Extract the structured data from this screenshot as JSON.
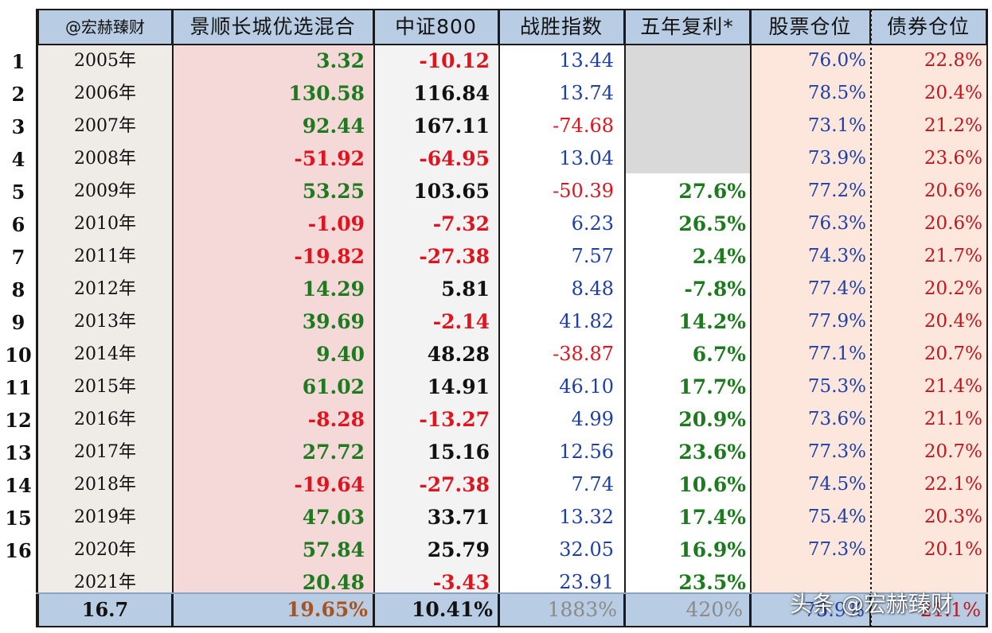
{
  "headers": [
    "@宏赫臻财",
    "景顺长城优选混合",
    "中证800",
    "战胜指数",
    "五年复利*",
    "股票仓位",
    "债券仓位"
  ],
  "colors": {
    "green": "#1e7a1e",
    "red": "#e0141e",
    "black": "#111111",
    "blue": "#1f3fa8",
    "dark_red": "#c0161e",
    "gray_text": "#8a8a8a",
    "brown": "#a8541e",
    "header_bg": "#b8cde4",
    "col_year_bg": "#efebe6",
    "col_fund_bg": "#f5d9d9",
    "col_index_bg": "#f3f3f3",
    "col_stock_bg": "#fde6dc",
    "col_bond_bg": "#fde6dc",
    "blank_bg": "#d9d9d9"
  },
  "rows": [
    {
      "num": "1",
      "year": "2005年",
      "fund": "3.32",
      "fund_color": "green",
      "index": "-10.12",
      "index_color": "red",
      "beat": "13.44",
      "beat_color": "blue",
      "cagr": "",
      "cagr_color": "green",
      "stock": "76.0%",
      "bond": "22.8%"
    },
    {
      "num": "2",
      "year": "2006年",
      "fund": "130.58",
      "fund_color": "green",
      "index": "116.84",
      "index_color": "black",
      "beat": "13.74",
      "beat_color": "blue",
      "cagr": "",
      "cagr_color": "green",
      "stock": "78.5%",
      "bond": "20.4%"
    },
    {
      "num": "3",
      "year": "2007年",
      "fund": "92.44",
      "fund_color": "green",
      "index": "167.11",
      "index_color": "black",
      "beat": "-74.68",
      "beat_color": "red",
      "cagr": "",
      "cagr_color": "green",
      "stock": "73.1%",
      "bond": "21.2%"
    },
    {
      "num": "4",
      "year": "2008年",
      "fund": "-51.92",
      "fund_color": "red",
      "index": "-64.95",
      "index_color": "red",
      "beat": "13.04",
      "beat_color": "blue",
      "cagr": "",
      "cagr_color": "green",
      "stock": "73.9%",
      "bond": "23.6%"
    },
    {
      "num": "5",
      "year": "2009年",
      "fund": "53.25",
      "fund_color": "green",
      "index": "103.65",
      "index_color": "black",
      "beat": "-50.39",
      "beat_color": "red",
      "cagr": "27.6%",
      "cagr_color": "green",
      "stock": "77.2%",
      "bond": "20.6%"
    },
    {
      "num": "6",
      "year": "2010年",
      "fund": "-1.09",
      "fund_color": "red",
      "index": "-7.32",
      "index_color": "red",
      "beat": "6.23",
      "beat_color": "blue",
      "cagr": "26.5%",
      "cagr_color": "green",
      "stock": "76.3%",
      "bond": "20.6%"
    },
    {
      "num": "7",
      "year": "2011年",
      "fund": "-19.82",
      "fund_color": "red",
      "index": "-27.38",
      "index_color": "red",
      "beat": "7.57",
      "beat_color": "blue",
      "cagr": "2.4%",
      "cagr_color": "green",
      "stock": "74.3%",
      "bond": "21.7%"
    },
    {
      "num": "8",
      "year": "2012年",
      "fund": "14.29",
      "fund_color": "green",
      "index": "5.81",
      "index_color": "black",
      "beat": "8.48",
      "beat_color": "blue",
      "cagr": "-7.8%",
      "cagr_color": "green",
      "stock": "77.4%",
      "bond": "20.2%"
    },
    {
      "num": "9",
      "year": "2013年",
      "fund": "39.69",
      "fund_color": "green",
      "index": "-2.14",
      "index_color": "red",
      "beat": "41.82",
      "beat_color": "blue",
      "cagr": "14.2%",
      "cagr_color": "green",
      "stock": "77.9%",
      "bond": "20.4%"
    },
    {
      "num": "10",
      "year": "2014年",
      "fund": "9.40",
      "fund_color": "green",
      "index": "48.28",
      "index_color": "black",
      "beat": "-38.87",
      "beat_color": "red",
      "cagr": "6.7%",
      "cagr_color": "green",
      "stock": "77.1%",
      "bond": "20.7%"
    },
    {
      "num": "11",
      "year": "2015年",
      "fund": "61.02",
      "fund_color": "green",
      "index": "14.91",
      "index_color": "black",
      "beat": "46.10",
      "beat_color": "blue",
      "cagr": "17.7%",
      "cagr_color": "green",
      "stock": "75.3%",
      "bond": "21.4%"
    },
    {
      "num": "12",
      "year": "2016年",
      "fund": "-8.28",
      "fund_color": "red",
      "index": "-13.27",
      "index_color": "red",
      "beat": "4.99",
      "beat_color": "blue",
      "cagr": "20.9%",
      "cagr_color": "green",
      "stock": "73.6%",
      "bond": "21.1%"
    },
    {
      "num": "13",
      "year": "2017年",
      "fund": "27.72",
      "fund_color": "green",
      "index": "15.16",
      "index_color": "black",
      "beat": "12.56",
      "beat_color": "blue",
      "cagr": "23.6%",
      "cagr_color": "green",
      "stock": "77.3%",
      "bond": "20.7%"
    },
    {
      "num": "14",
      "year": "2018年",
      "fund": "-19.64",
      "fund_color": "red",
      "index": "-27.38",
      "index_color": "red",
      "beat": "7.74",
      "beat_color": "blue",
      "cagr": "10.6%",
      "cagr_color": "green",
      "stock": "74.5%",
      "bond": "22.1%"
    },
    {
      "num": "15",
      "year": "2019年",
      "fund": "47.03",
      "fund_color": "green",
      "index": "33.71",
      "index_color": "black",
      "beat": "13.32",
      "beat_color": "blue",
      "cagr": "17.4%",
      "cagr_color": "green",
      "stock": "75.4%",
      "bond": "20.3%"
    },
    {
      "num": "16",
      "year": "2020年",
      "fund": "57.84",
      "fund_color": "green",
      "index": "25.79",
      "index_color": "black",
      "beat": "32.05",
      "beat_color": "blue",
      "cagr": "16.9%",
      "cagr_color": "green",
      "stock": "77.3%",
      "bond": "20.1%"
    },
    {
      "num": "",
      "year": "2021年",
      "fund": "20.48",
      "fund_color": "green",
      "index": "-3.43",
      "index_color": "red",
      "beat": "23.91",
      "beat_color": "blue",
      "cagr": "23.5%",
      "cagr_color": "green",
      "stock": "",
      "bond": ""
    }
  ],
  "footer": {
    "years": "16.7",
    "fund": "19.65%",
    "index": "10.41%",
    "beat": "1883%",
    "cagr": "420%",
    "stock": "75.9%",
    "bond": "21.1%"
  },
  "watermark": "头条 @宏赫臻财"
}
